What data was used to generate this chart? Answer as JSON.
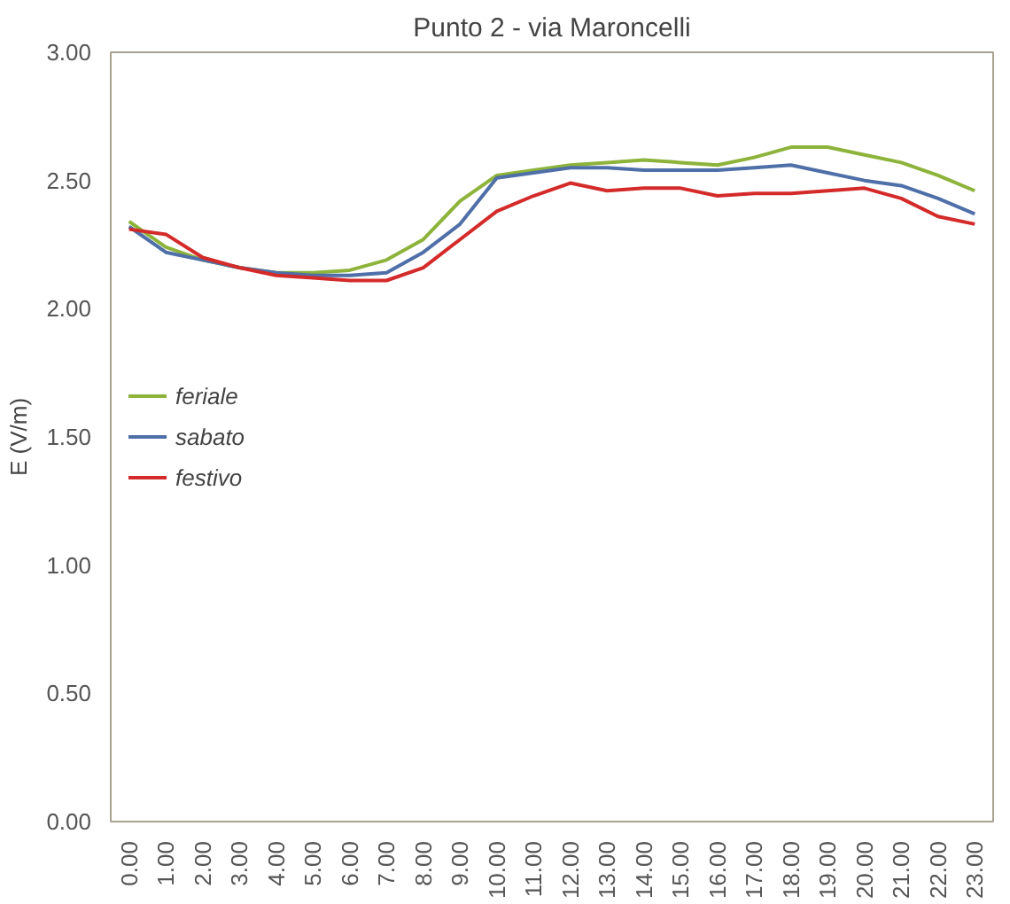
{
  "chart_data": {
    "type": "line",
    "title": "Punto 2 - via Maroncelli",
    "ylabel": "E (V/m)",
    "categories": [
      "0.00",
      "1.00",
      "2.00",
      "3.00",
      "4.00",
      "5.00",
      "6.00",
      "7.00",
      "8.00",
      "9.00",
      "10.00",
      "11.00",
      "12.00",
      "13.00",
      "14.00",
      "15.00",
      "16.00",
      "17.00",
      "18.00",
      "19.00",
      "20.00",
      "21.00",
      "22.00",
      "23.00"
    ],
    "series": [
      {
        "name": "feriale",
        "color": "#8db33a",
        "values": [
          2.34,
          2.24,
          2.19,
          2.16,
          2.14,
          2.14,
          2.15,
          2.19,
          2.27,
          2.42,
          2.52,
          2.54,
          2.56,
          2.57,
          2.58,
          2.57,
          2.56,
          2.59,
          2.63,
          2.63,
          2.6,
          2.57,
          2.52,
          2.46
        ]
      },
      {
        "name": "sabato",
        "color": "#4f6fa8",
        "values": [
          2.32,
          2.22,
          2.19,
          2.16,
          2.14,
          2.13,
          2.13,
          2.14,
          2.22,
          2.33,
          2.51,
          2.53,
          2.55,
          2.55,
          2.54,
          2.54,
          2.54,
          2.55,
          2.56,
          2.53,
          2.5,
          2.48,
          2.43,
          2.37
        ]
      },
      {
        "name": "festivo",
        "color": "#d42a2a",
        "values": [
          2.31,
          2.29,
          2.2,
          2.16,
          2.13,
          2.12,
          2.11,
          2.11,
          2.16,
          2.27,
          2.38,
          2.44,
          2.49,
          2.46,
          2.47,
          2.47,
          2.44,
          2.45,
          2.45,
          2.46,
          2.47,
          2.43,
          2.36,
          2.33
        ]
      }
    ],
    "ylim": [
      0,
      3
    ],
    "yticks": [
      {
        "value": 0,
        "label": "0.00"
      },
      {
        "value": 0.5,
        "label": "0.50"
      },
      {
        "value": 1,
        "label": "1.00"
      },
      {
        "value": 1.5,
        "label": "1.50"
      },
      {
        "value": 2,
        "label": "2.00"
      },
      {
        "value": 2.5,
        "label": "2.50"
      },
      {
        "value": 3,
        "label": "3.00"
      }
    ],
    "grid": false,
    "legend": "left",
    "marker": "none",
    "line_style": "solid"
  }
}
